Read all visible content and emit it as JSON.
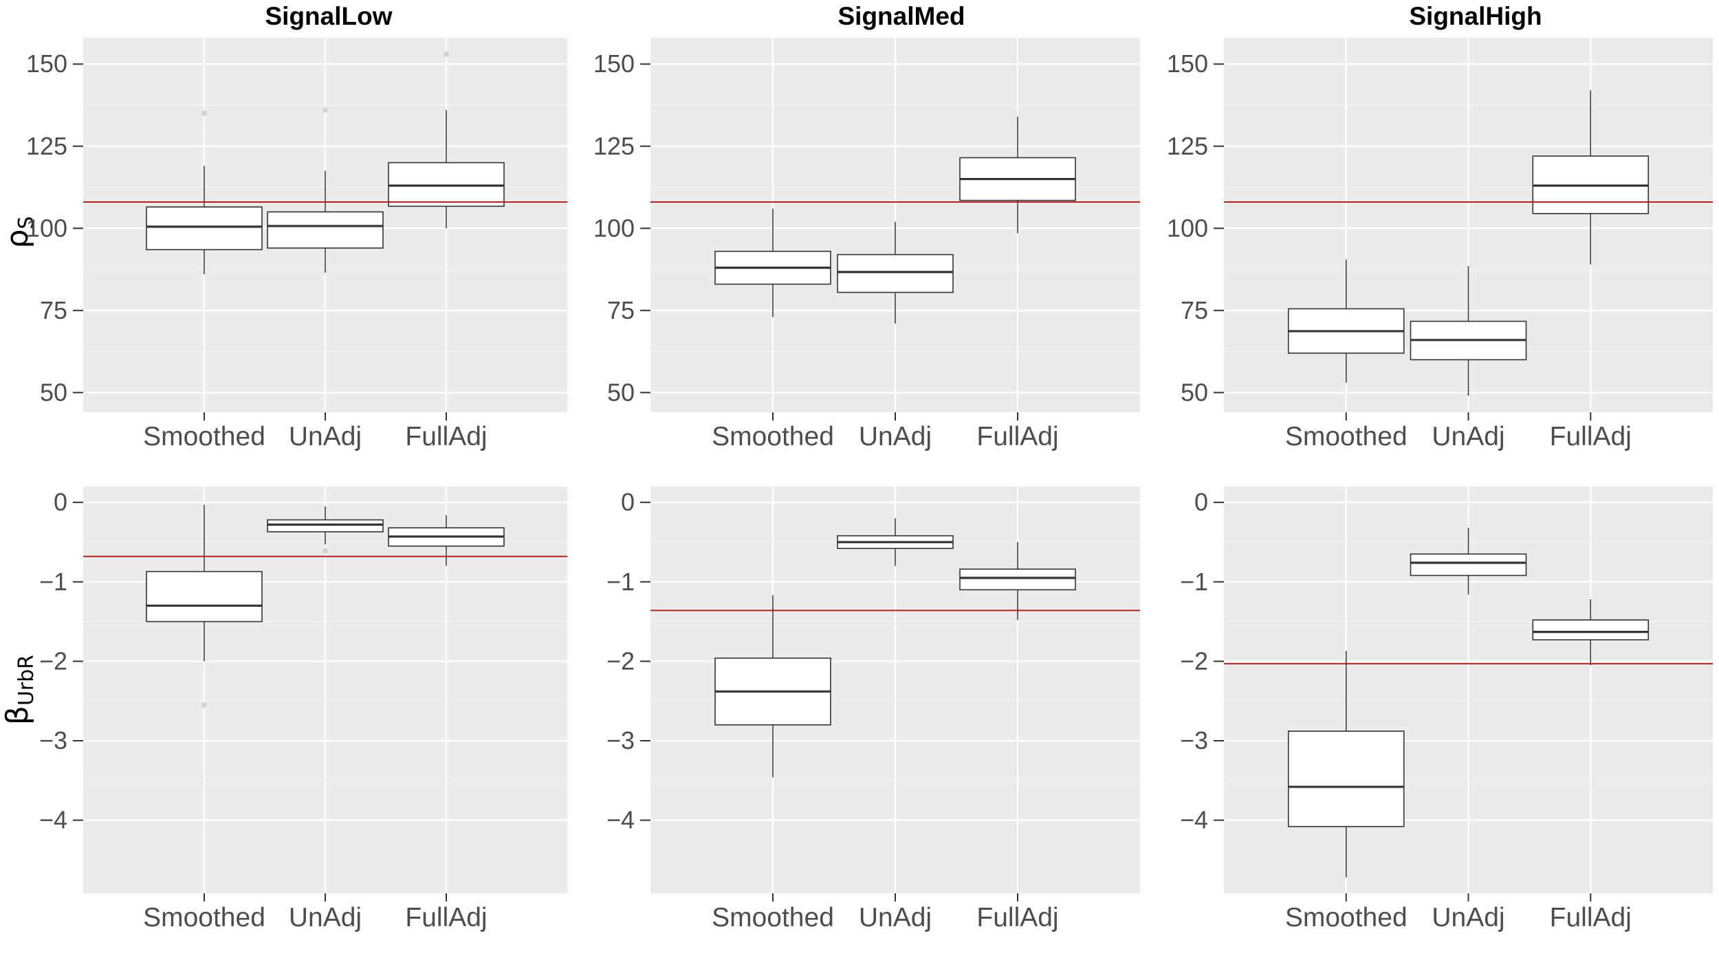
{
  "figure": {
    "column_titles": [
      "SignalLow",
      "SignalMed",
      "SignalHigh"
    ],
    "row_ylabels": [
      {
        "symbol": "ρ",
        "subscript": "S"
      },
      {
        "symbol": "β",
        "subscript": "UrbR"
      }
    ]
  },
  "colors": {
    "panel_bg": "#ebebeb",
    "grid_major": "#ffffff",
    "grid_minor": "#f5f5f5",
    "reference_line": "#b22222",
    "box_stroke": "#333333",
    "box_fill": "#ffffff",
    "outlier": "#d3d3d3"
  },
  "chart_data": [
    {
      "type": "boxplot",
      "panel": "SignalLow",
      "row": "rho_S",
      "title": "SignalLow",
      "ylabel": "ρS",
      "ylim": [
        44,
        158
      ],
      "yticks": [
        50,
        75,
        100,
        125,
        150
      ],
      "ytick_labels": [
        "50",
        "75",
        "100",
        "125",
        "150"
      ],
      "reference_line": 108,
      "categories": [
        "Smoothed",
        "UnAdj",
        "FullAdj"
      ],
      "boxes": [
        {
          "category": "Smoothed",
          "lower_whisker": 86,
          "q1": 93.5,
          "median": 100.5,
          "q3": 106.5,
          "upper_whisker": 119,
          "outliers": [
            135
          ]
        },
        {
          "category": "UnAdj",
          "lower_whisker": 86.5,
          "q1": 94,
          "median": 100.7,
          "q3": 105,
          "upper_whisker": 117.5,
          "outliers": [
            136
          ]
        },
        {
          "category": "FullAdj",
          "lower_whisker": 100,
          "q1": 106.7,
          "median": 113,
          "q3": 120,
          "upper_whisker": 136,
          "outliers": [
            153
          ]
        }
      ]
    },
    {
      "type": "boxplot",
      "panel": "SignalMed",
      "row": "rho_S",
      "title": "SignalMed",
      "ylabel": "ρS",
      "ylim": [
        44,
        158
      ],
      "yticks": [
        50,
        75,
        100,
        125,
        150
      ],
      "ytick_labels": [
        "50",
        "75",
        "100",
        "125",
        "150"
      ],
      "reference_line": 108,
      "categories": [
        "Smoothed",
        "UnAdj",
        "FullAdj"
      ],
      "boxes": [
        {
          "category": "Smoothed",
          "lower_whisker": 73,
          "q1": 83,
          "median": 88,
          "q3": 93,
          "upper_whisker": 106,
          "outliers": []
        },
        {
          "category": "UnAdj",
          "lower_whisker": 71,
          "q1": 80.5,
          "median": 86.7,
          "q3": 92,
          "upper_whisker": 102,
          "outliers": []
        },
        {
          "category": "FullAdj",
          "lower_whisker": 98.5,
          "q1": 108.5,
          "median": 115,
          "q3": 121.5,
          "upper_whisker": 134,
          "outliers": []
        }
      ]
    },
    {
      "type": "boxplot",
      "panel": "SignalHigh",
      "row": "rho_S",
      "title": "SignalHigh",
      "ylabel": "ρS",
      "ylim": [
        44,
        158
      ],
      "yticks": [
        50,
        75,
        100,
        125,
        150
      ],
      "ytick_labels": [
        "50",
        "75",
        "100",
        "125",
        "150"
      ],
      "reference_line": 108,
      "categories": [
        "Smoothed",
        "UnAdj",
        "FullAdj"
      ],
      "boxes": [
        {
          "category": "Smoothed",
          "lower_whisker": 53,
          "q1": 62,
          "median": 68.7,
          "q3": 75.5,
          "upper_whisker": 90.5,
          "outliers": []
        },
        {
          "category": "UnAdj",
          "lower_whisker": 49,
          "q1": 60,
          "median": 66,
          "q3": 71.7,
          "upper_whisker": 88.5,
          "outliers": []
        },
        {
          "category": "FullAdj",
          "lower_whisker": 89,
          "q1": 104.5,
          "median": 113,
          "q3": 122,
          "upper_whisker": 142,
          "outliers": []
        }
      ]
    },
    {
      "type": "boxplot",
      "panel": "SignalLow",
      "row": "beta_UrbR",
      "ylabel": "βUrbR",
      "ylim": [
        -4.92,
        0.2
      ],
      "yticks": [
        0,
        -1,
        -2,
        -3,
        -4
      ],
      "ytick_labels": [
        "0",
        "−1",
        "−2",
        "−3",
        "−4"
      ],
      "reference_line": -0.68,
      "categories": [
        "Smoothed",
        "UnAdj",
        "FullAdj"
      ],
      "boxes": [
        {
          "category": "Smoothed",
          "lower_whisker": -2.0,
          "q1": -1.5,
          "median": -1.3,
          "q3": -0.87,
          "upper_whisker": -0.03,
          "outliers": [
            -2.55
          ]
        },
        {
          "category": "UnAdj",
          "lower_whisker": -0.53,
          "q1": -0.37,
          "median": -0.28,
          "q3": -0.22,
          "upper_whisker": -0.05,
          "outliers": [
            -0.61
          ]
        },
        {
          "category": "FullAdj",
          "lower_whisker": -0.8,
          "q1": -0.55,
          "median": -0.43,
          "q3": -0.32,
          "upper_whisker": -0.16,
          "outliers": []
        }
      ]
    },
    {
      "type": "boxplot",
      "panel": "SignalMed",
      "row": "beta_UrbR",
      "ylabel": "βUrbR",
      "ylim": [
        -4.92,
        0.2
      ],
      "yticks": [
        0,
        -1,
        -2,
        -3,
        -4
      ],
      "ytick_labels": [
        "0",
        "−1",
        "−2",
        "−3",
        "−4"
      ],
      "reference_line": -1.36,
      "categories": [
        "Smoothed",
        "UnAdj",
        "FullAdj"
      ],
      "boxes": [
        {
          "category": "Smoothed",
          "lower_whisker": -3.46,
          "q1": -2.8,
          "median": -2.38,
          "q3": -1.96,
          "upper_whisker": -1.17,
          "outliers": []
        },
        {
          "category": "UnAdj",
          "lower_whisker": -0.8,
          "q1": -0.58,
          "median": -0.5,
          "q3": -0.42,
          "upper_whisker": -0.2,
          "outliers": []
        },
        {
          "category": "FullAdj",
          "lower_whisker": -1.48,
          "q1": -1.1,
          "median": -0.95,
          "q3": -0.84,
          "upper_whisker": -0.5,
          "outliers": []
        }
      ]
    },
    {
      "type": "boxplot",
      "panel": "SignalHigh",
      "row": "beta_UrbR",
      "ylabel": "βUrbR",
      "ylim": [
        -4.92,
        0.2
      ],
      "yticks": [
        0,
        -1,
        -2,
        -3,
        -4
      ],
      "ytick_labels": [
        "0",
        "−1",
        "−2",
        "−3",
        "−4"
      ],
      "reference_line": -2.03,
      "categories": [
        "Smoothed",
        "UnAdj",
        "FullAdj"
      ],
      "boxes": [
        {
          "category": "Smoothed",
          "lower_whisker": -4.72,
          "q1": -4.08,
          "median": -3.58,
          "q3": -2.88,
          "upper_whisker": -1.87,
          "outliers": []
        },
        {
          "category": "UnAdj",
          "lower_whisker": -1.16,
          "q1": -0.92,
          "median": -0.76,
          "q3": -0.65,
          "upper_whisker": -0.32,
          "outliers": []
        },
        {
          "category": "FullAdj",
          "lower_whisker": -2.05,
          "q1": -1.73,
          "median": -1.63,
          "q3": -1.48,
          "upper_whisker": -1.22,
          "outliers": []
        }
      ]
    }
  ]
}
